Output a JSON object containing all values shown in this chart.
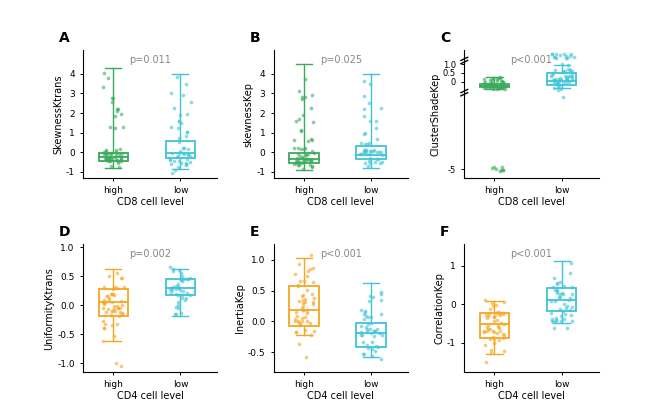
{
  "panels": [
    {
      "label": "A",
      "ylabel": "SkewnessKtrans",
      "xlabel": "CD8 cell level",
      "pvalue": "p=0.011",
      "groups": [
        "high",
        "low"
      ],
      "colors": [
        "#3aaa5c",
        "#40c4d8"
      ],
      "high_box": {
        "q1": -0.42,
        "median": -0.22,
        "q3": -0.02,
        "whisker_low": -0.8,
        "whisker_high": 4.3
      },
      "low_box": {
        "q1": -0.28,
        "median": -0.05,
        "q3": 0.58,
        "whisker_low": -0.85,
        "whisker_high": 4.0
      },
      "ylim": [
        -1.3,
        5.2
      ],
      "yticks": [
        -1,
        0,
        1,
        2,
        3,
        4
      ],
      "row": 0,
      "col": 0,
      "high_pts_seed": 1,
      "low_pts_seed": 2,
      "n_high": 55,
      "n_low": 45
    },
    {
      "label": "B",
      "ylabel": "skewnessKep",
      "xlabel": "CD8 cell level",
      "pvalue": "p=0.025",
      "groups": [
        "high",
        "low"
      ],
      "colors": [
        "#3aaa5c",
        "#40c4d8"
      ],
      "high_box": {
        "q1": -0.52,
        "median": -0.32,
        "q3": -0.02,
        "whisker_low": -0.88,
        "whisker_high": 4.5
      },
      "low_box": {
        "q1": -0.32,
        "median": -0.12,
        "q3": 0.32,
        "whisker_low": -0.82,
        "whisker_high": 4.0
      },
      "ylim": [
        -1.3,
        5.2
      ],
      "yticks": [
        -1,
        0,
        1,
        2,
        3,
        4
      ],
      "row": 0,
      "col": 1,
      "high_pts_seed": 3,
      "low_pts_seed": 4,
      "n_high": 55,
      "n_low": 45
    },
    {
      "label": "C",
      "ylabel": "ClusterShadeKep",
      "xlabel": "CD8 cell level",
      "pvalue": "p<0.001",
      "groups": [
        "high",
        "low"
      ],
      "colors": [
        "#3aaa5c",
        "#40c4d8"
      ],
      "high_box": {
        "q1": -0.32,
        "median": -0.22,
        "q3": -0.12,
        "whisker_low": -0.42,
        "whisker_high": 0.28
      },
      "low_box": {
        "q1": -0.18,
        "median": 0.05,
        "q3": 0.48,
        "whisker_low": -0.35,
        "whisker_high": 0.95
      },
      "ylim": [
        -5.5,
        1.8
      ],
      "yticks": [
        -5,
        0,
        0.5,
        1.0
      ],
      "broken_axis": true,
      "row": 0,
      "col": 2,
      "high_pts_seed": 5,
      "low_pts_seed": 6,
      "n_high": 55,
      "n_low": 45
    },
    {
      "label": "D",
      "ylabel": "UniformityKtrans",
      "xlabel": "CD4 cell level",
      "pvalue": "p=0.002",
      "groups": [
        "high",
        "low"
      ],
      "colors": [
        "#f5a623",
        "#40c4d8"
      ],
      "high_box": {
        "q1": -0.18,
        "median": 0.05,
        "q3": 0.28,
        "whisker_low": -0.62,
        "whisker_high": 0.62
      },
      "low_box": {
        "q1": 0.18,
        "median": 0.3,
        "q3": 0.45,
        "whisker_low": -0.18,
        "whisker_high": 0.62
      },
      "ylim": [
        -1.15,
        1.05
      ],
      "yticks": [
        -1.0,
        -0.5,
        0.0,
        0.5,
        1.0
      ],
      "outliers_high": [
        -1.05,
        -1.0
      ],
      "row": 1,
      "col": 0,
      "high_pts_seed": 7,
      "low_pts_seed": 8,
      "n_high": 50,
      "n_low": 40
    },
    {
      "label": "E",
      "ylabel": "InertiaKep",
      "xlabel": "CD4 cell level",
      "pvalue": "p<0.001",
      "groups": [
        "high",
        "low"
      ],
      "colors": [
        "#f5a623",
        "#40c4d8"
      ],
      "high_box": {
        "q1": -0.08,
        "median": 0.18,
        "q3": 0.58,
        "whisker_low": -0.22,
        "whisker_high": 1.02
      },
      "low_box": {
        "q1": -0.42,
        "median": -0.18,
        "q3": -0.02,
        "whisker_low": -0.58,
        "whisker_high": 0.62
      },
      "ylim": [
        -0.82,
        1.25
      ],
      "yticks": [
        -0.5,
        0.0,
        0.5,
        1.0
      ],
      "row": 1,
      "col": 1,
      "high_pts_seed": 9,
      "low_pts_seed": 10,
      "n_high": 50,
      "n_low": 45
    },
    {
      "label": "F",
      "ylabel": "CorrelationKep",
      "xlabel": "CD4 cell level",
      "pvalue": "p<0.001",
      "groups": [
        "high",
        "low"
      ],
      "colors": [
        "#f5a623",
        "#40c4d8"
      ],
      "high_box": {
        "q1": -0.88,
        "median": -0.52,
        "q3": -0.22,
        "whisker_low": -1.28,
        "whisker_high": 0.08
      },
      "low_box": {
        "q1": -0.18,
        "median": 0.12,
        "q3": 0.42,
        "whisker_low": -0.48,
        "whisker_high": 1.12
      },
      "ylim": [
        -1.75,
        1.55
      ],
      "yticks": [
        -1,
        0,
        1
      ],
      "row": 1,
      "col": 2,
      "high_pts_seed": 11,
      "low_pts_seed": 12,
      "n_high": 50,
      "n_low": 45
    }
  ]
}
